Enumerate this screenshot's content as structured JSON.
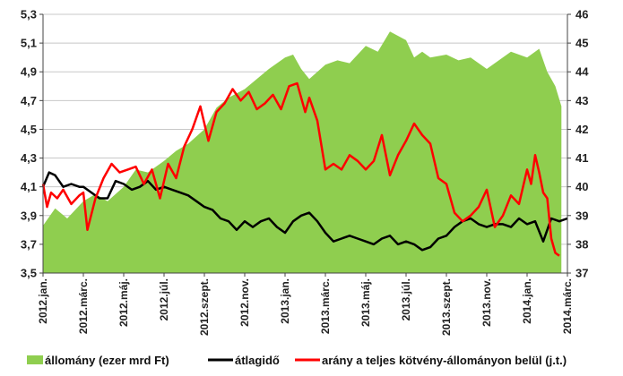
{
  "chart_data": {
    "type": "area",
    "x_ticks": [
      "2012.jan.",
      "2012.márc.",
      "2012.máj.",
      "2012.júl.",
      "2012.szept.",
      "2012.nov.",
      "2013.jan.",
      "2013.márc.",
      "2013.máj.",
      "2013.júl.",
      "2013.szept.",
      "2013.nov.",
      "2014.jan.",
      "2014.márc."
    ],
    "y_left": {
      "min": 3.5,
      "max": 5.3,
      "ticks": [
        "3,5",
        "3,7",
        "3,9",
        "4,1",
        "4,3",
        "4,5",
        "4,7",
        "4,9",
        "5,1",
        "5,3"
      ]
    },
    "y_right": {
      "min": 37,
      "max": 46,
      "ticks": [
        "37",
        "38",
        "39",
        "40",
        "41",
        "42",
        "43",
        "44",
        "45",
        "46"
      ]
    },
    "grid": "horizontal",
    "legend_position": "bottom",
    "colors": {
      "allomany": "#8fce4f",
      "atlagido": "#000000",
      "arany": "#ff0000"
    },
    "series": [
      {
        "name": "állomány (ezer mrd Ft)",
        "axis": "left",
        "type": "area",
        "x": [
          0,
          0.3,
          0.6,
          1,
          1.3,
          1.6,
          2,
          2.3,
          2.6,
          3,
          3.3,
          3.6,
          4,
          4.3,
          4.6,
          5,
          5.3,
          5.6,
          6,
          6.2,
          6.4,
          6.6,
          7,
          7.3,
          7.6,
          8,
          8.3,
          8.6,
          9,
          9.2,
          9.4,
          9.6,
          10,
          10.3,
          10.6,
          11,
          11.3,
          11.6,
          12,
          12.3,
          12.5,
          12.7,
          12.85
        ],
        "values": [
          3.83,
          3.95,
          3.88,
          4.0,
          4.05,
          4.0,
          4.1,
          4.22,
          4.2,
          4.28,
          4.35,
          4.4,
          4.5,
          4.65,
          4.72,
          4.78,
          4.85,
          4.92,
          5.0,
          5.02,
          4.92,
          4.85,
          4.95,
          4.98,
          4.96,
          5.08,
          5.04,
          5.18,
          5.12,
          5.0,
          5.04,
          5.0,
          5.02,
          4.98,
          5.0,
          4.92,
          4.98,
          5.04,
          5.0,
          5.06,
          4.9,
          4.8,
          4.66
        ]
      },
      {
        "name": "átlagidő",
        "axis": "right",
        "type": "line",
        "x": [
          0,
          0.15,
          0.3,
          0.5,
          0.7,
          0.9,
          1,
          1.2,
          1.4,
          1.6,
          1.8,
          2,
          2.2,
          2.4,
          2.6,
          2.8,
          3,
          3.2,
          3.4,
          3.6,
          3.8,
          4,
          4.2,
          4.4,
          4.6,
          4.8,
          5,
          5.2,
          5.4,
          5.6,
          5.8,
          6,
          6.2,
          6.4,
          6.6,
          6.8,
          7,
          7.2,
          7.4,
          7.6,
          7.8,
          8,
          8.2,
          8.4,
          8.6,
          8.8,
          9,
          9.2,
          9.4,
          9.6,
          9.8,
          10,
          10.2,
          10.4,
          10.6,
          10.8,
          11,
          11.2,
          11.4,
          11.6,
          11.8,
          12,
          12.2,
          12.4,
          12.6,
          12.8,
          13
        ],
        "values": [
          40.0,
          40.5,
          40.4,
          40.0,
          40.1,
          40.0,
          40.0,
          39.8,
          39.6,
          39.6,
          40.2,
          40.1,
          39.9,
          40.0,
          40.2,
          39.9,
          40.0,
          39.9,
          39.8,
          39.7,
          39.5,
          39.3,
          39.2,
          38.9,
          38.8,
          38.5,
          38.8,
          38.6,
          38.8,
          38.9,
          38.6,
          38.4,
          38.8,
          39.0,
          39.1,
          38.8,
          38.4,
          38.1,
          38.2,
          38.3,
          38.2,
          38.1,
          38.0,
          38.2,
          38.3,
          38.0,
          38.1,
          38.0,
          37.8,
          37.9,
          38.2,
          38.3,
          38.6,
          38.8,
          38.9,
          38.7,
          38.6,
          38.7,
          38.7,
          38.6,
          38.9,
          38.7,
          38.8,
          38.1,
          38.9,
          38.8,
          38.9
        ]
      },
      {
        "name": "arány a teljes kötvény-állományon belül (j.t.)",
        "axis": "right",
        "type": "line",
        "x": [
          0,
          0.1,
          0.2,
          0.35,
          0.5,
          0.7,
          0.9,
          1.0,
          1.1,
          1.3,
          1.5,
          1.7,
          1.9,
          2.1,
          2.3,
          2.5,
          2.7,
          2.9,
          3.1,
          3.3,
          3.5,
          3.7,
          3.9,
          4.1,
          4.3,
          4.5,
          4.7,
          4.9,
          5.1,
          5.3,
          5.5,
          5.7,
          5.9,
          6.1,
          6.3,
          6.5,
          6.6,
          6.8,
          7.0,
          7.2,
          7.4,
          7.6,
          7.8,
          8.0,
          8.2,
          8.4,
          8.6,
          8.8,
          9.0,
          9.2,
          9.4,
          9.6,
          9.8,
          10.0,
          10.2,
          10.4,
          10.6,
          10.8,
          11.0,
          11.2,
          11.4,
          11.6,
          11.8,
          12.0,
          12.1,
          12.2,
          12.3,
          12.4,
          12.5,
          12.6,
          12.7,
          12.8
        ],
        "values": [
          40.1,
          39.3,
          39.8,
          39.6,
          39.9,
          39.4,
          39.7,
          39.8,
          38.5,
          39.6,
          40.3,
          40.8,
          40.5,
          40.6,
          40.7,
          40.1,
          40.6,
          39.6,
          40.8,
          40.3,
          41.4,
          42.0,
          42.8,
          41.6,
          42.6,
          42.9,
          43.4,
          43.0,
          43.3,
          42.7,
          42.9,
          43.2,
          42.7,
          43.5,
          43.6,
          42.6,
          43.1,
          42.3,
          40.6,
          40.8,
          40.6,
          41.1,
          40.9,
          40.6,
          40.9,
          41.8,
          40.4,
          41.1,
          41.6,
          42.2,
          41.8,
          41.5,
          40.3,
          40.1,
          39.1,
          38.8,
          39.0,
          39.3,
          39.9,
          38.6,
          39.0,
          39.7,
          39.4,
          40.6,
          40.1,
          41.1,
          40.5,
          39.8,
          39.6,
          38.2,
          37.7,
          37.6
        ]
      }
    ]
  }
}
